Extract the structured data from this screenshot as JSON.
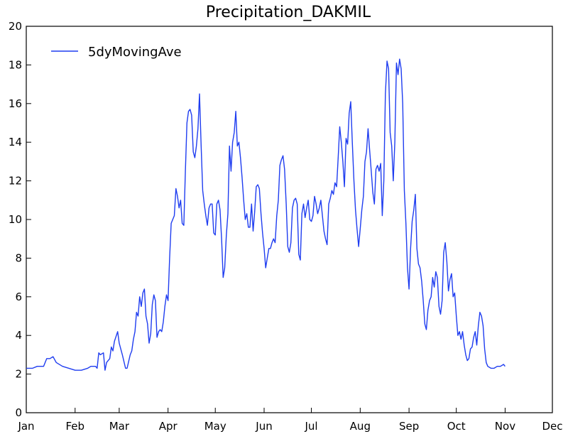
{
  "chart_data": {
    "type": "line",
    "title": "Precipitation_DAKMIL",
    "xlabel": "",
    "ylabel": "",
    "ylim": [
      0,
      20
    ],
    "yticks": [
      0,
      2,
      4,
      6,
      8,
      10,
      12,
      14,
      16,
      18,
      20
    ],
    "xlim": [
      1,
      335
    ],
    "xticks": [
      {
        "label": "Jan",
        "day": 1
      },
      {
        "label": "Feb",
        "day": 32
      },
      {
        "label": "Mar",
        "day": 60
      },
      {
        "label": "Apr",
        "day": 91
      },
      {
        "label": "May",
        "day": 121
      },
      {
        "label": "Jun",
        "day": 152
      },
      {
        "label": "Jul",
        "day": 182
      },
      {
        "label": "Aug",
        "day": 213
      },
      {
        "label": "Sep",
        "day": 244
      },
      {
        "label": "Oct",
        "day": 274
      },
      {
        "label": "Nov",
        "day": 305
      },
      {
        "label": "Dec",
        "day": 335
      }
    ],
    "grid": false,
    "legend": {
      "placement": "top-left",
      "entries": [
        "5dyMovingAve"
      ]
    },
    "series": [
      {
        "name": "5dyMovingAve",
        "color": "#1f3df0",
        "points": [
          [
            1,
            2.3
          ],
          [
            3,
            2.3
          ],
          [
            5,
            2.3
          ],
          [
            8,
            2.4
          ],
          [
            12,
            2.4
          ],
          [
            14,
            2.8
          ],
          [
            16,
            2.8
          ],
          [
            18,
            2.9
          ],
          [
            20,
            2.6
          ],
          [
            24,
            2.4
          ],
          [
            28,
            2.3
          ],
          [
            32,
            2.2
          ],
          [
            36,
            2.2
          ],
          [
            40,
            2.3
          ],
          [
            42,
            2.4
          ],
          [
            45,
            2.4
          ],
          [
            46,
            2.3
          ],
          [
            47,
            3.1
          ],
          [
            48,
            3.0
          ],
          [
            50,
            3.1
          ],
          [
            51,
            2.2
          ],
          [
            52,
            2.6
          ],
          [
            54,
            2.8
          ],
          [
            55,
            3.4
          ],
          [
            56,
            3.2
          ],
          [
            57,
            3.7
          ],
          [
            59,
            4.2
          ],
          [
            60,
            3.6
          ],
          [
            62,
            3.0
          ],
          [
            64,
            2.3
          ],
          [
            65,
            2.3
          ],
          [
            67,
            3.0
          ],
          [
            68,
            3.2
          ],
          [
            69,
            3.8
          ],
          [
            70,
            4.2
          ],
          [
            71,
            5.2
          ],
          [
            72,
            5.0
          ],
          [
            73,
            6.0
          ],
          [
            74,
            5.5
          ],
          [
            75,
            6.2
          ],
          [
            76,
            6.4
          ],
          [
            77,
            5.0
          ],
          [
            78,
            4.6
          ],
          [
            79,
            3.6
          ],
          [
            80,
            4.1
          ],
          [
            81,
            5.6
          ],
          [
            82,
            6.1
          ],
          [
            83,
            5.8
          ],
          [
            84,
            3.9
          ],
          [
            85,
            4.2
          ],
          [
            86,
            4.3
          ],
          [
            87,
            4.2
          ],
          [
            88,
            4.7
          ],
          [
            89,
            5.5
          ],
          [
            90,
            6.1
          ],
          [
            91,
            5.8
          ],
          [
            92,
            8.0
          ],
          [
            93,
            9.8
          ],
          [
            94,
            10.0
          ],
          [
            95,
            10.2
          ],
          [
            96,
            11.6
          ],
          [
            97,
            11.2
          ],
          [
            98,
            10.6
          ],
          [
            99,
            11.0
          ],
          [
            100,
            9.8
          ],
          [
            101,
            9.7
          ],
          [
            102,
            12.5
          ],
          [
            103,
            15.0
          ],
          [
            104,
            15.6
          ],
          [
            105,
            15.7
          ],
          [
            106,
            15.4
          ],
          [
            107,
            13.5
          ],
          [
            108,
            13.2
          ],
          [
            109,
            13.8
          ],
          [
            110,
            14.7
          ],
          [
            111,
            16.5
          ],
          [
            112,
            13.8
          ],
          [
            113,
            11.5
          ],
          [
            114,
            10.8
          ],
          [
            115,
            10.2
          ],
          [
            116,
            9.7
          ],
          [
            117,
            10.6
          ],
          [
            118,
            10.8
          ],
          [
            119,
            10.8
          ],
          [
            120,
            9.3
          ],
          [
            121,
            9.2
          ],
          [
            122,
            10.8
          ],
          [
            123,
            11.0
          ],
          [
            124,
            10.5
          ],
          [
            125,
            9.0
          ],
          [
            126,
            7.0
          ],
          [
            127,
            7.5
          ],
          [
            128,
            9.2
          ],
          [
            129,
            10.3
          ],
          [
            130,
            13.8
          ],
          [
            131,
            12.5
          ],
          [
            132,
            14.0
          ],
          [
            133,
            14.5
          ],
          [
            134,
            15.6
          ],
          [
            135,
            13.8
          ],
          [
            136,
            14.0
          ],
          [
            137,
            13.2
          ],
          [
            138,
            12.2
          ],
          [
            139,
            11.0
          ],
          [
            140,
            10.0
          ],
          [
            141,
            10.3
          ],
          [
            142,
            9.6
          ],
          [
            143,
            9.6
          ],
          [
            144,
            10.8
          ],
          [
            145,
            9.4
          ],
          [
            146,
            10.4
          ],
          [
            147,
            11.7
          ],
          [
            148,
            11.8
          ],
          [
            149,
            11.6
          ],
          [
            150,
            10.3
          ],
          [
            151,
            9.3
          ],
          [
            152,
            8.5
          ],
          [
            153,
            7.5
          ],
          [
            154,
            8.0
          ],
          [
            155,
            8.5
          ],
          [
            156,
            8.5
          ],
          [
            157,
            8.8
          ],
          [
            158,
            9.0
          ],
          [
            159,
            8.8
          ],
          [
            160,
            10.2
          ],
          [
            161,
            11.0
          ],
          [
            162,
            12.8
          ],
          [
            163,
            13.1
          ],
          [
            164,
            13.3
          ],
          [
            165,
            12.6
          ],
          [
            166,
            10.8
          ],
          [
            167,
            8.6
          ],
          [
            168,
            8.3
          ],
          [
            169,
            8.8
          ],
          [
            170,
            10.6
          ],
          [
            171,
            11.0
          ],
          [
            172,
            11.1
          ],
          [
            173,
            10.8
          ],
          [
            174,
            8.2
          ],
          [
            175,
            7.9
          ],
          [
            176,
            10.3
          ],
          [
            177,
            10.8
          ],
          [
            178,
            10.1
          ],
          [
            179,
            10.6
          ],
          [
            180,
            11.0
          ],
          [
            181,
            10.0
          ],
          [
            182,
            9.9
          ],
          [
            183,
            10.2
          ],
          [
            184,
            11.2
          ],
          [
            185,
            10.8
          ],
          [
            186,
            10.3
          ],
          [
            187,
            10.6
          ],
          [
            188,
            11.0
          ],
          [
            189,
            10.2
          ],
          [
            190,
            9.4
          ],
          [
            191,
            9.0
          ],
          [
            192,
            8.7
          ],
          [
            193,
            10.8
          ],
          [
            194,
            11.1
          ],
          [
            195,
            11.5
          ],
          [
            196,
            11.3
          ],
          [
            197,
            11.9
          ],
          [
            198,
            11.7
          ],
          [
            199,
            13.2
          ],
          [
            200,
            14.8
          ],
          [
            201,
            14.0
          ],
          [
            202,
            13.0
          ],
          [
            203,
            11.7
          ],
          [
            204,
            14.2
          ],
          [
            205,
            13.9
          ],
          [
            206,
            15.5
          ],
          [
            207,
            16.1
          ],
          [
            208,
            14.0
          ],
          [
            209,
            12.0
          ],
          [
            210,
            10.5
          ],
          [
            211,
            9.5
          ],
          [
            212,
            8.6
          ],
          [
            213,
            9.5
          ],
          [
            214,
            10.5
          ],
          [
            215,
            11.2
          ],
          [
            216,
            13.0
          ],
          [
            217,
            13.5
          ],
          [
            218,
            14.7
          ],
          [
            219,
            13.6
          ],
          [
            220,
            12.5
          ],
          [
            221,
            11.4
          ],
          [
            222,
            10.8
          ],
          [
            223,
            12.6
          ],
          [
            224,
            12.8
          ],
          [
            225,
            12.5
          ],
          [
            226,
            12.9
          ],
          [
            227,
            10.2
          ],
          [
            228,
            12.0
          ],
          [
            229,
            16.5
          ],
          [
            230,
            18.2
          ],
          [
            231,
            17.8
          ],
          [
            232,
            14.5
          ],
          [
            233,
            13.8
          ],
          [
            234,
            12.0
          ],
          [
            235,
            14.0
          ],
          [
            236,
            18.1
          ],
          [
            237,
            17.5
          ],
          [
            238,
            18.3
          ],
          [
            239,
            17.8
          ],
          [
            240,
            16.0
          ],
          [
            241,
            11.5
          ],
          [
            242,
            9.8
          ],
          [
            243,
            7.5
          ],
          [
            244,
            6.4
          ],
          [
            245,
            8.5
          ],
          [
            246,
            9.9
          ],
          [
            247,
            10.5
          ],
          [
            248,
            11.3
          ],
          [
            249,
            8.5
          ],
          [
            250,
            7.7
          ],
          [
            251,
            7.5
          ],
          [
            252,
            6.8
          ],
          [
            253,
            5.8
          ],
          [
            254,
            4.6
          ],
          [
            255,
            4.3
          ],
          [
            256,
            5.3
          ],
          [
            257,
            5.8
          ],
          [
            258,
            6.0
          ],
          [
            259,
            7.0
          ],
          [
            260,
            6.5
          ],
          [
            261,
            7.3
          ],
          [
            262,
            7.0
          ],
          [
            263,
            5.5
          ],
          [
            264,
            5.1
          ],
          [
            265,
            5.8
          ],
          [
            266,
            8.3
          ],
          [
            267,
            8.8
          ],
          [
            268,
            7.8
          ],
          [
            269,
            6.3
          ],
          [
            270,
            6.9
          ],
          [
            271,
            7.2
          ],
          [
            272,
            6.0
          ],
          [
            273,
            6.2
          ],
          [
            274,
            5.0
          ],
          [
            275,
            4.0
          ],
          [
            276,
            4.2
          ],
          [
            277,
            3.8
          ],
          [
            278,
            4.2
          ],
          [
            279,
            3.5
          ],
          [
            280,
            3.0
          ],
          [
            281,
            2.7
          ],
          [
            282,
            2.8
          ],
          [
            283,
            3.3
          ],
          [
            284,
            3.4
          ],
          [
            285,
            3.9
          ],
          [
            286,
            4.2
          ],
          [
            287,
            3.5
          ],
          [
            288,
            4.5
          ],
          [
            289,
            5.2
          ],
          [
            290,
            5.0
          ],
          [
            291,
            4.5
          ],
          [
            292,
            3.3
          ],
          [
            293,
            2.6
          ],
          [
            294,
            2.4
          ],
          [
            296,
            2.3
          ],
          [
            298,
            2.3
          ],
          [
            300,
            2.4
          ],
          [
            302,
            2.4
          ],
          [
            304,
            2.5
          ],
          [
            305,
            2.4
          ]
        ]
      }
    ]
  }
}
